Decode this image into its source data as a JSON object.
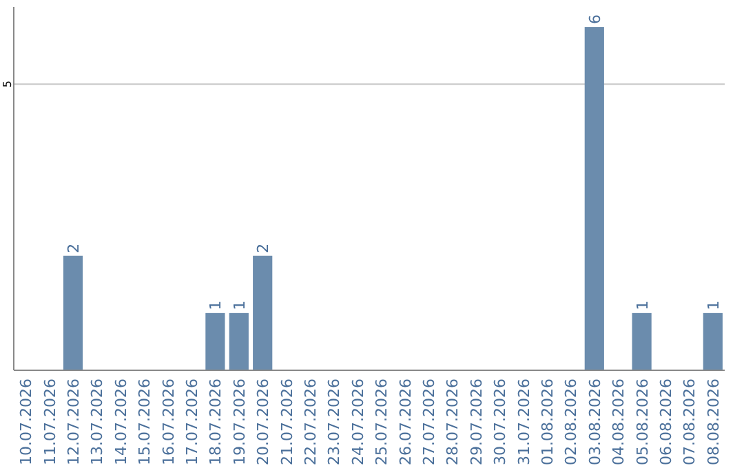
{
  "chart_data": {
    "type": "bar",
    "categories": [
      "10.07.2026",
      "11.07.2026",
      "12.07.2026",
      "13.07.2026",
      "14.07.2026",
      "15.07.2026",
      "16.07.2026",
      "17.07.2026",
      "18.07.2026",
      "19.07.2026",
      "20.07.2026",
      "21.07.2026",
      "22.07.2026",
      "23.07.2026",
      "24.07.2026",
      "25.07.2026",
      "26.07.2026",
      "27.07.2026",
      "28.07.2026",
      "29.07.2026",
      "30.07.2026",
      "31.07.2026",
      "01.08.2026",
      "02.08.2026",
      "03.08.2026",
      "04.08.2026",
      "05.08.2026",
      "06.08.2026",
      "07.08.2026",
      "08.08.2026"
    ],
    "values": [
      0,
      0,
      2,
      0,
      0,
      0,
      0,
      0,
      1,
      1,
      2,
      0,
      0,
      0,
      0,
      0,
      0,
      0,
      0,
      0,
      0,
      0,
      0,
      0,
      6,
      0,
      1,
      0,
      0,
      1
    ],
    "value_labels": [
      null,
      null,
      "2",
      null,
      null,
      null,
      null,
      null,
      "1",
      "1",
      "2",
      null,
      null,
      null,
      null,
      null,
      null,
      null,
      null,
      null,
      null,
      null,
      null,
      null,
      "6",
      null,
      "1",
      null,
      null,
      "1"
    ],
    "color": "#6b8cad",
    "ylim": [
      0,
      6.35
    ],
    "yticks": [
      5
    ],
    "grid": "y"
  }
}
